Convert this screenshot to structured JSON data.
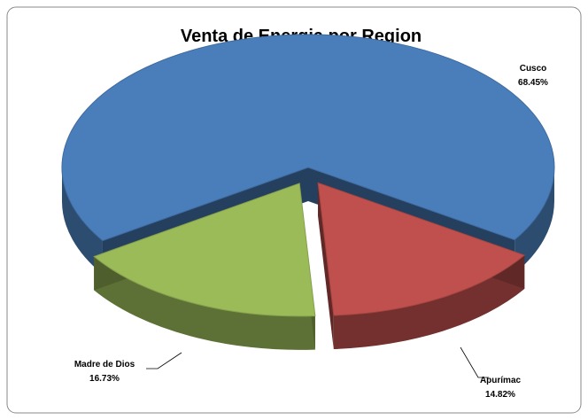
{
  "chart_data": {
    "type": "pie",
    "title": "Venta de Energia por Region",
    "categories": [
      "Cusco",
      "Apurímac",
      "Madre de Dios"
    ],
    "values": [
      68.45,
      14.82,
      16.73
    ],
    "value_labels": [
      "68.45%",
      "14.82%",
      "16.73%"
    ],
    "colors": [
      "#4a7ebb",
      "#c0504d",
      "#9bbb59"
    ]
  }
}
